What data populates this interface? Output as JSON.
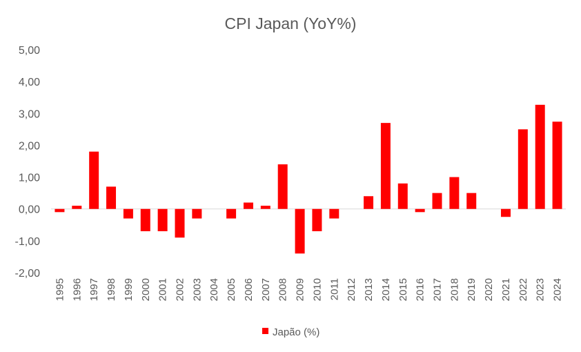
{
  "chart_data": {
    "type": "bar",
    "title": "CPI Japan (YoY%)",
    "xlabel": "",
    "ylabel": "",
    "categories": [
      "1995",
      "1996",
      "1997",
      "1998",
      "1999",
      "2000",
      "2001",
      "2002",
      "2003",
      "2004",
      "2005",
      "2006",
      "2007",
      "2008",
      "2009",
      "2010",
      "2011",
      "2012",
      "2013",
      "2014",
      "2015",
      "2016",
      "2017",
      "2018",
      "2019",
      "2020",
      "2021",
      "2022",
      "2023",
      "2024"
    ],
    "series": [
      {
        "name": "Japão (%)",
        "color": "#ff0000",
        "values": [
          -0.1,
          0.1,
          1.8,
          0.7,
          -0.3,
          -0.7,
          -0.7,
          -0.9,
          -0.3,
          0.0,
          -0.3,
          0.2,
          0.1,
          1.4,
          -1.4,
          -0.7,
          -0.3,
          0.0,
          0.4,
          2.7,
          0.8,
          -0.1,
          0.5,
          1.0,
          0.5,
          0.0,
          -0.25,
          2.5,
          3.27,
          2.74
        ]
      }
    ],
    "ylim": [
      -2,
      5
    ],
    "yticks": [
      5,
      4,
      3,
      2,
      1,
      0,
      -1,
      -2
    ],
    "ytick_labels": [
      "5,00",
      "4,00",
      "3,00",
      "2,00",
      "1,00",
      "0,00",
      "-1,00",
      "-2,00"
    ],
    "grid": false,
    "legend_position": "bottom-center"
  }
}
